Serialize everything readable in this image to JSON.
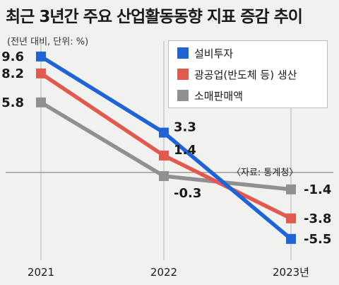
{
  "title": "최근 3년간 주요 산업활동동향 지표 증감 추이",
  "unit_note": "(전년 대비, 단위: %)",
  "source": "〈자료: 통계청〉",
  "chart_data": {
    "type": "line",
    "categories": [
      "2021",
      "2022",
      "2023년"
    ],
    "ylim": [
      -7.5,
      11
    ],
    "zero_line": true,
    "legend_position": "top-right",
    "series": [
      {
        "name": "설비투자",
        "color": "#1f63d4",
        "values": [
          9.6,
          3.3,
          -5.5
        ],
        "labels": [
          "9.6",
          "3.3",
          "-5.5"
        ]
      },
      {
        "name": "광공업(반도체 등) 생산",
        "color": "#e25a4f",
        "values": [
          8.2,
          1.4,
          -3.8
        ],
        "labels": [
          "8.2",
          "1.4",
          "-3.8"
        ]
      },
      {
        "name": "소매판매액",
        "color": "#909090",
        "values": [
          5.8,
          -0.3,
          -1.4
        ],
        "labels": [
          "5.8",
          "-0.3",
          "-1.4"
        ]
      }
    ]
  }
}
